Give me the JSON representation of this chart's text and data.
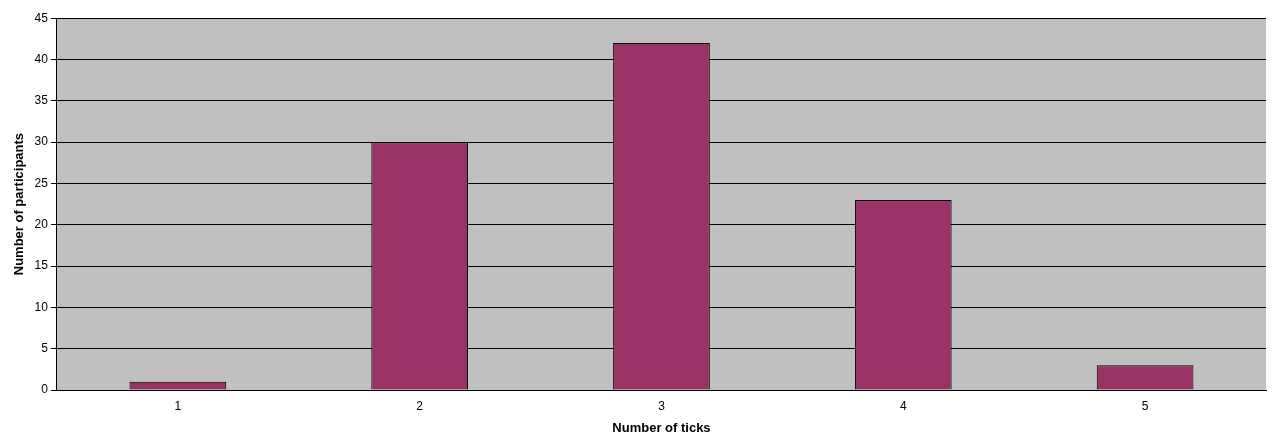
{
  "chart_data": {
    "type": "bar",
    "xlabel": "Number of ticks",
    "ylabel": "Number of participants",
    "categories": [
      "1",
      "2",
      "3",
      "4",
      "5"
    ],
    "values": [
      1,
      30,
      42,
      23,
      3
    ],
    "color": "#993366",
    "ylim": [
      0,
      45
    ],
    "yticks": [
      0,
      5,
      10,
      15,
      20,
      25,
      30,
      35,
      40,
      45
    ],
    "grid": "y",
    "legend": false
  }
}
